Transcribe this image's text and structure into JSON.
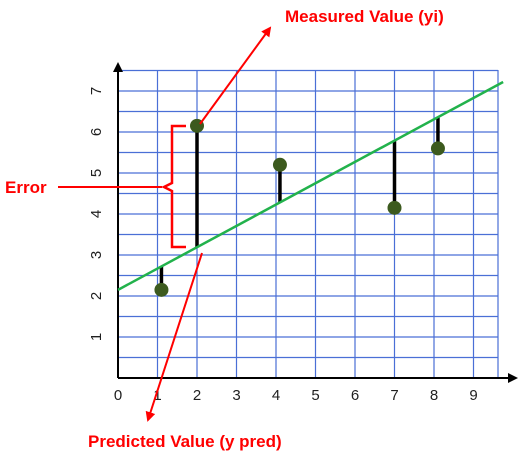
{
  "chart_data": {
    "type": "scatter",
    "title": "",
    "xlabel": "",
    "ylabel": "",
    "xlim": [
      0,
      10
    ],
    "ylim": [
      0,
      7.5
    ],
    "grid": true,
    "x_ticks": [
      "0",
      "1",
      "2",
      "3",
      "4",
      "5",
      "6",
      "7",
      "8",
      "9"
    ],
    "y_ticks": [
      "1",
      "2",
      "3",
      "4",
      "5",
      "6",
      "7"
    ],
    "points": [
      {
        "x": 1.1,
        "y": 2.15
      },
      {
        "x": 2.0,
        "y": 6.15
      },
      {
        "x": 4.1,
        "y": 5.2
      },
      {
        "x": 7.0,
        "y": 4.15
      },
      {
        "x": 8.1,
        "y": 5.6
      }
    ],
    "regression_line": {
      "slope": 0.52,
      "intercept": 2.15
    },
    "annotations": {
      "measured": "Measured Value (yi)",
      "predicted": "Predicted Value (y pred)",
      "error": "Error"
    },
    "colors": {
      "grid": "#4a6fd6",
      "line": "#22b24c",
      "point": "#3c5a1e",
      "residual": "#000000",
      "annotation": "#ff0000"
    }
  }
}
